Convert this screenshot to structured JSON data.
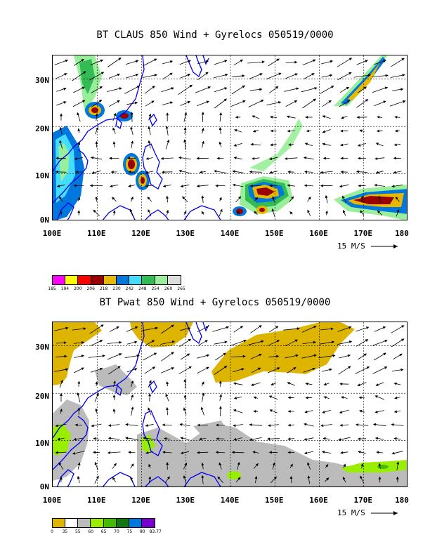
{
  "panels": [
    {
      "title": "BT CLAUS 850 Wind + Gyrelocs 050519/0000",
      "y_labels": [
        "30N",
        "20N",
        "10N",
        "0N"
      ],
      "x_labels": [
        "100E",
        "110E",
        "120E",
        "130E",
        "140E",
        "150E",
        "160E",
        "170E",
        "180"
      ],
      "ref_vector_label": "15 M/S",
      "colorbar": {
        "colors": [
          "#ff00ff",
          "#ffff00",
          "#ff0000",
          "#990000",
          "#e6b800",
          "#0077dd",
          "#44ddff",
          "#33bb55",
          "#99ee99",
          "#dddddd"
        ],
        "labels": [
          "185",
          "194",
          "200",
          "206",
          "218",
          "230",
          "242",
          "248",
          "254",
          "260",
          "265"
        ]
      }
    },
    {
      "title": "BT Pwat 850 Wind + Gyrelocs 050519/0000",
      "y_labels": [
        "30N",
        "20N",
        "10N",
        "0N"
      ],
      "x_labels": [
        "100E",
        "110E",
        "120E",
        "130E",
        "140E",
        "150E",
        "160E",
        "170E",
        "180"
      ],
      "ref_vector_label": "15 M/S",
      "colorbar": {
        "colors": [
          "#ddb500",
          "#ffffff",
          "#bbbbbb",
          "#99ee00",
          "#44bb00",
          "#117711",
          "#0077dd",
          "#7700cc"
        ],
        "labels": [
          "0",
          "35",
          "55",
          "60",
          "65",
          "70",
          "75",
          "80",
          "83.77"
        ]
      }
    }
  ],
  "map_info": {
    "lat_range": [
      0,
      35
    ],
    "lon_range": [
      100,
      180
    ],
    "coastline_color": "#0000ee"
  }
}
